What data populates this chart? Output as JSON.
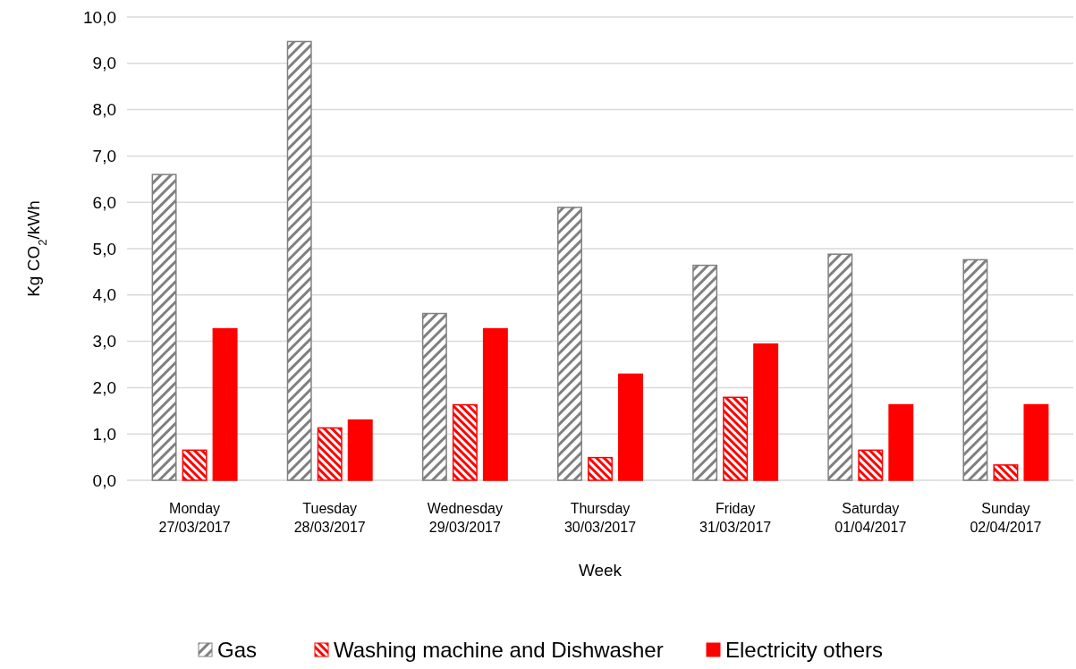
{
  "chart_data": {
    "type": "bar",
    "xlabel": "Week",
    "ylabel": "Kg CO$_{2}$/kWh",
    "categories": [
      "Monday\n27/03/2017",
      "Tuesday\n28/03/2017",
      "Wednesday\n29/03/2017",
      "Thursday\n30/03/2017",
      "Friday\n31/03/2017",
      "Saturday\n01/04/2017",
      "Sunday\n02/04/2017"
    ],
    "series": [
      {
        "name": "Gas",
        "color": "#808080",
        "values": [
          6.6,
          9.47,
          3.6,
          5.89,
          4.64,
          4.88,
          4.76
        ]
      },
      {
        "name": "Washing machine and Dishwasher",
        "color": "#ff0000",
        "values": [
          0.65,
          1.13,
          1.63,
          0.49,
          1.79,
          0.65,
          0.33
        ]
      },
      {
        "name": "Electricity others",
        "color": "#ff0000",
        "values": [
          3.27,
          1.3,
          3.27,
          2.29,
          2.94,
          1.63,
          1.63
        ]
      }
    ],
    "ylim": [
      0,
      10
    ],
    "yticks": [
      {
        "value": 0,
        "label": "0,0"
      },
      {
        "value": 1,
        "label": "1,0"
      },
      {
        "value": 2,
        "label": "2,0"
      },
      {
        "value": 3,
        "label": "3,0"
      },
      {
        "value": 4,
        "label": "4,0"
      },
      {
        "value": 5,
        "label": "5,0"
      },
      {
        "value": 6,
        "label": "6,0"
      },
      {
        "value": 7,
        "label": "7,0"
      },
      {
        "value": 8,
        "label": "8,0"
      },
      {
        "value": 9,
        "label": "9,0"
      },
      {
        "value": 10,
        "label": "10,0"
      }
    ],
    "grid": "y",
    "legend": "bottom"
  }
}
